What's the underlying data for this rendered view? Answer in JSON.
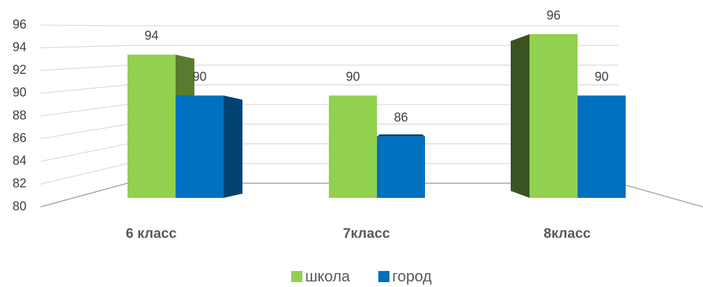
{
  "chart_data": {
    "type": "bar3d",
    "categories": [
      "6 класс",
      "7класс",
      "8класс"
    ],
    "series": [
      {
        "name": "школа",
        "color": "#92d050",
        "values": [
          94,
          90,
          96
        ]
      },
      {
        "name": "город",
        "color": "#0070c0",
        "values": [
          90,
          86,
          90
        ]
      }
    ],
    "ylim": [
      80,
      96
    ],
    "yticks": [
      80,
      82,
      84,
      86,
      88,
      90,
      92,
      94,
      96
    ],
    "grid": true
  }
}
